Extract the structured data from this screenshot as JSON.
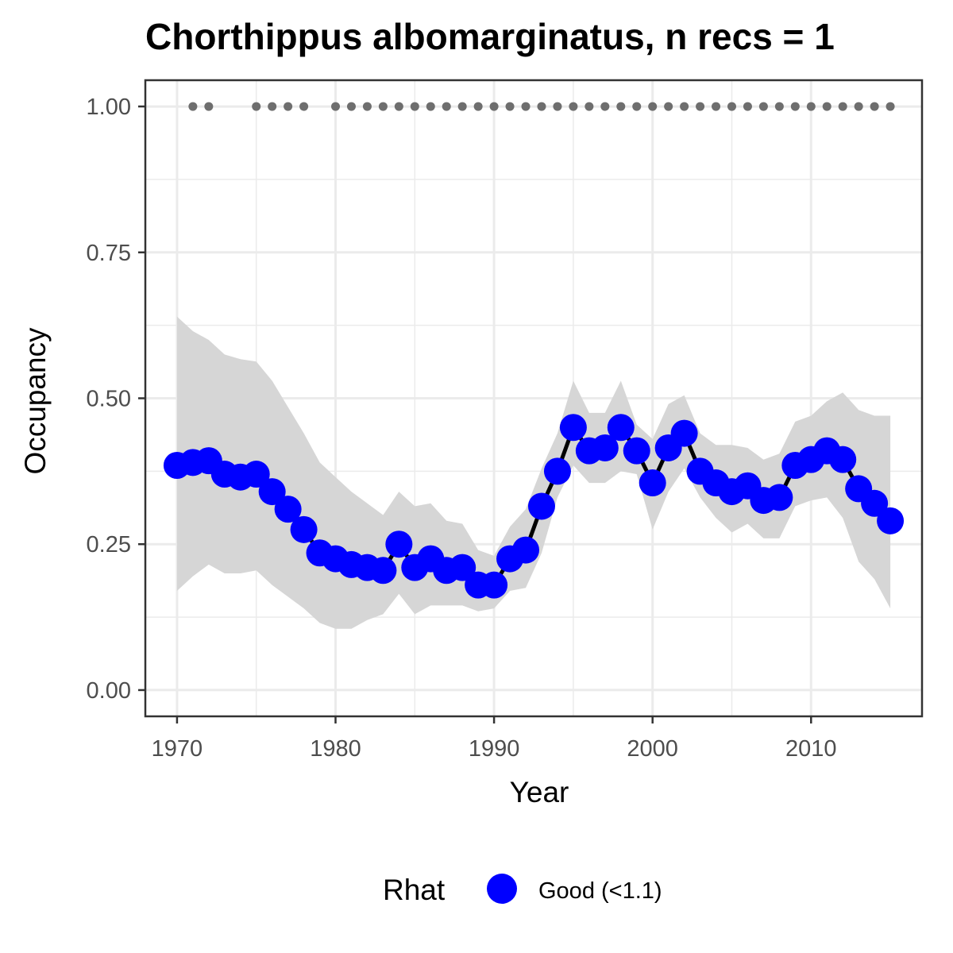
{
  "chart_data": {
    "type": "line",
    "title": "Chorthippus albomarginatus, n recs = 1",
    "xlabel": "Year",
    "ylabel": "Occupancy",
    "xlim": [
      1968,
      2017
    ],
    "ylim": [
      -0.045,
      1.045
    ],
    "x_ticks": [
      1970,
      1980,
      1990,
      2000,
      2010
    ],
    "x_tick_labels": [
      "1970",
      "1980",
      "1990",
      "2000",
      "2010"
    ],
    "y_ticks": [
      0,
      0.25,
      0.5,
      0.75,
      1
    ],
    "y_tick_labels": [
      "0.00",
      "0.25",
      "0.50",
      "0.75",
      "1.00"
    ],
    "grid": true,
    "x": [
      1970,
      1971,
      1972,
      1973,
      1974,
      1975,
      1976,
      1977,
      1978,
      1979,
      1980,
      1981,
      1982,
      1983,
      1984,
      1985,
      1986,
      1987,
      1988,
      1989,
      1990,
      1991,
      1992,
      1993,
      1994,
      1995,
      1996,
      1997,
      1998,
      1999,
      2000,
      2001,
      2002,
      2003,
      2004,
      2005,
      2006,
      2007,
      2008,
      2009,
      2010,
      2011,
      2012,
      2013,
      2014,
      2015
    ],
    "series": [
      {
        "name": "Good (<1.1)",
        "color": "#0000ff",
        "line_color": "#000000",
        "values": [
          0.385,
          0.39,
          0.393,
          0.37,
          0.365,
          0.37,
          0.34,
          0.31,
          0.275,
          0.235,
          0.225,
          0.215,
          0.21,
          0.205,
          0.25,
          0.21,
          0.225,
          0.205,
          0.21,
          0.18,
          0.18,
          0.225,
          0.24,
          0.315,
          0.375,
          0.45,
          0.41,
          0.415,
          0.45,
          0.41,
          0.355,
          0.415,
          0.44,
          0.375,
          0.355,
          0.34,
          0.35,
          0.325,
          0.33,
          0.385,
          0.395,
          0.41,
          0.395,
          0.345,
          0.32,
          0.29
        ],
        "lower": [
          0.17,
          0.195,
          0.215,
          0.2,
          0.2,
          0.205,
          0.18,
          0.16,
          0.14,
          0.115,
          0.105,
          0.105,
          0.12,
          0.13,
          0.165,
          0.13,
          0.145,
          0.145,
          0.145,
          0.135,
          0.14,
          0.17,
          0.175,
          0.235,
          0.33,
          0.385,
          0.355,
          0.355,
          0.375,
          0.37,
          0.275,
          0.34,
          0.38,
          0.33,
          0.295,
          0.27,
          0.285,
          0.26,
          0.26,
          0.315,
          0.325,
          0.33,
          0.295,
          0.22,
          0.19,
          0.14
        ],
        "upper": [
          0.64,
          0.615,
          0.6,
          0.575,
          0.567,
          0.563,
          0.53,
          0.485,
          0.44,
          0.39,
          0.365,
          0.34,
          0.32,
          0.3,
          0.34,
          0.315,
          0.32,
          0.29,
          0.285,
          0.24,
          0.23,
          0.28,
          0.31,
          0.38,
          0.44,
          0.53,
          0.475,
          0.475,
          0.53,
          0.455,
          0.43,
          0.49,
          0.505,
          0.44,
          0.42,
          0.42,
          0.415,
          0.395,
          0.405,
          0.46,
          0.47,
          0.495,
          0.51,
          0.48,
          0.47,
          0.47
        ]
      }
    ],
    "records_series": {
      "y": 1,
      "color": "#6e6e6e",
      "x": [
        1971,
        1972,
        1975,
        1976,
        1977,
        1978,
        1980,
        1981,
        1982,
        1983,
        1984,
        1985,
        1986,
        1987,
        1988,
        1989,
        1990,
        1991,
        1992,
        1993,
        1994,
        1995,
        1996,
        1997,
        1998,
        1999,
        2000,
        2001,
        2002,
        2003,
        2004,
        2005,
        2006,
        2007,
        2008,
        2009,
        2010,
        2011,
        2012,
        2013,
        2014,
        2015
      ]
    },
    "legend": {
      "title": "Rhat",
      "placement": "bottom",
      "entries": [
        {
          "label": "Good (<1.1)",
          "color": "#0000ff"
        }
      ]
    },
    "ribbon_color": "#d6d6d6",
    "grid_color": "#ebebeb",
    "panel_border_color": "#333333"
  }
}
